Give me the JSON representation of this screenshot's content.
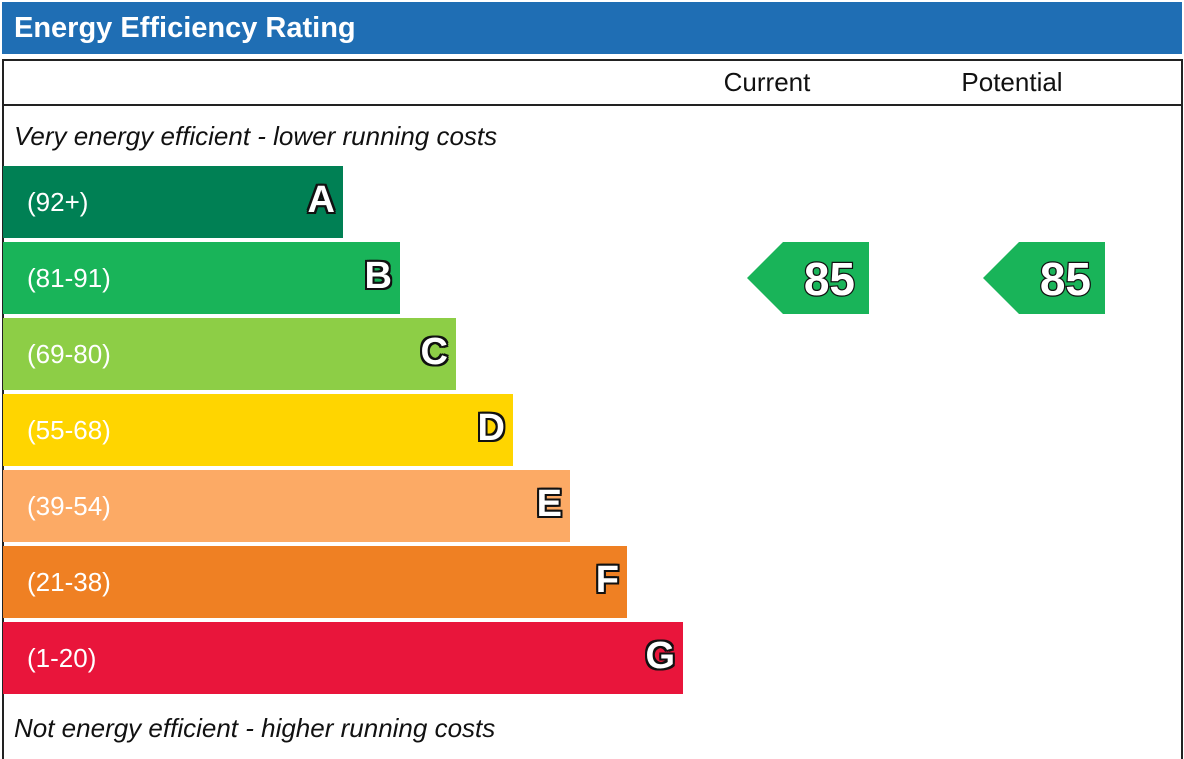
{
  "title": "Energy Efficiency Rating",
  "columns": {
    "current": "Current",
    "potential": "Potential"
  },
  "notes": {
    "top": "Very energy efficient - lower running costs",
    "bottom": "Not energy efficient - higher running costs"
  },
  "colors": {
    "header": "#1f6eb4",
    "A": "#008054",
    "B": "#19b459",
    "C": "#8dce46",
    "D": "#ffd500",
    "E": "#fcaa65",
    "F": "#ef8023",
    "G": "#e9153b"
  },
  "chart_data": {
    "type": "bar",
    "title": "Energy Efficiency Rating",
    "bands": [
      {
        "letter": "A",
        "range": "(92+)",
        "min": 92,
        "max": 100,
        "color": "#008054"
      },
      {
        "letter": "B",
        "range": "(81-91)",
        "min": 81,
        "max": 91,
        "color": "#19b459"
      },
      {
        "letter": "C",
        "range": "(69-80)",
        "min": 69,
        "max": 80,
        "color": "#8dce46"
      },
      {
        "letter": "D",
        "range": "(55-68)",
        "min": 55,
        "max": 68,
        "color": "#ffd500"
      },
      {
        "letter": "E",
        "range": "(39-54)",
        "min": 39,
        "max": 54,
        "color": "#fcaa65"
      },
      {
        "letter": "F",
        "range": "(21-38)",
        "min": 21,
        "max": 38,
        "color": "#ef8023"
      },
      {
        "letter": "G",
        "range": "(1-20)",
        "min": 1,
        "max": 20,
        "color": "#e9153b"
      }
    ],
    "current": {
      "value": 85,
      "band": "B"
    },
    "potential": {
      "value": 85,
      "band": "B"
    }
  }
}
